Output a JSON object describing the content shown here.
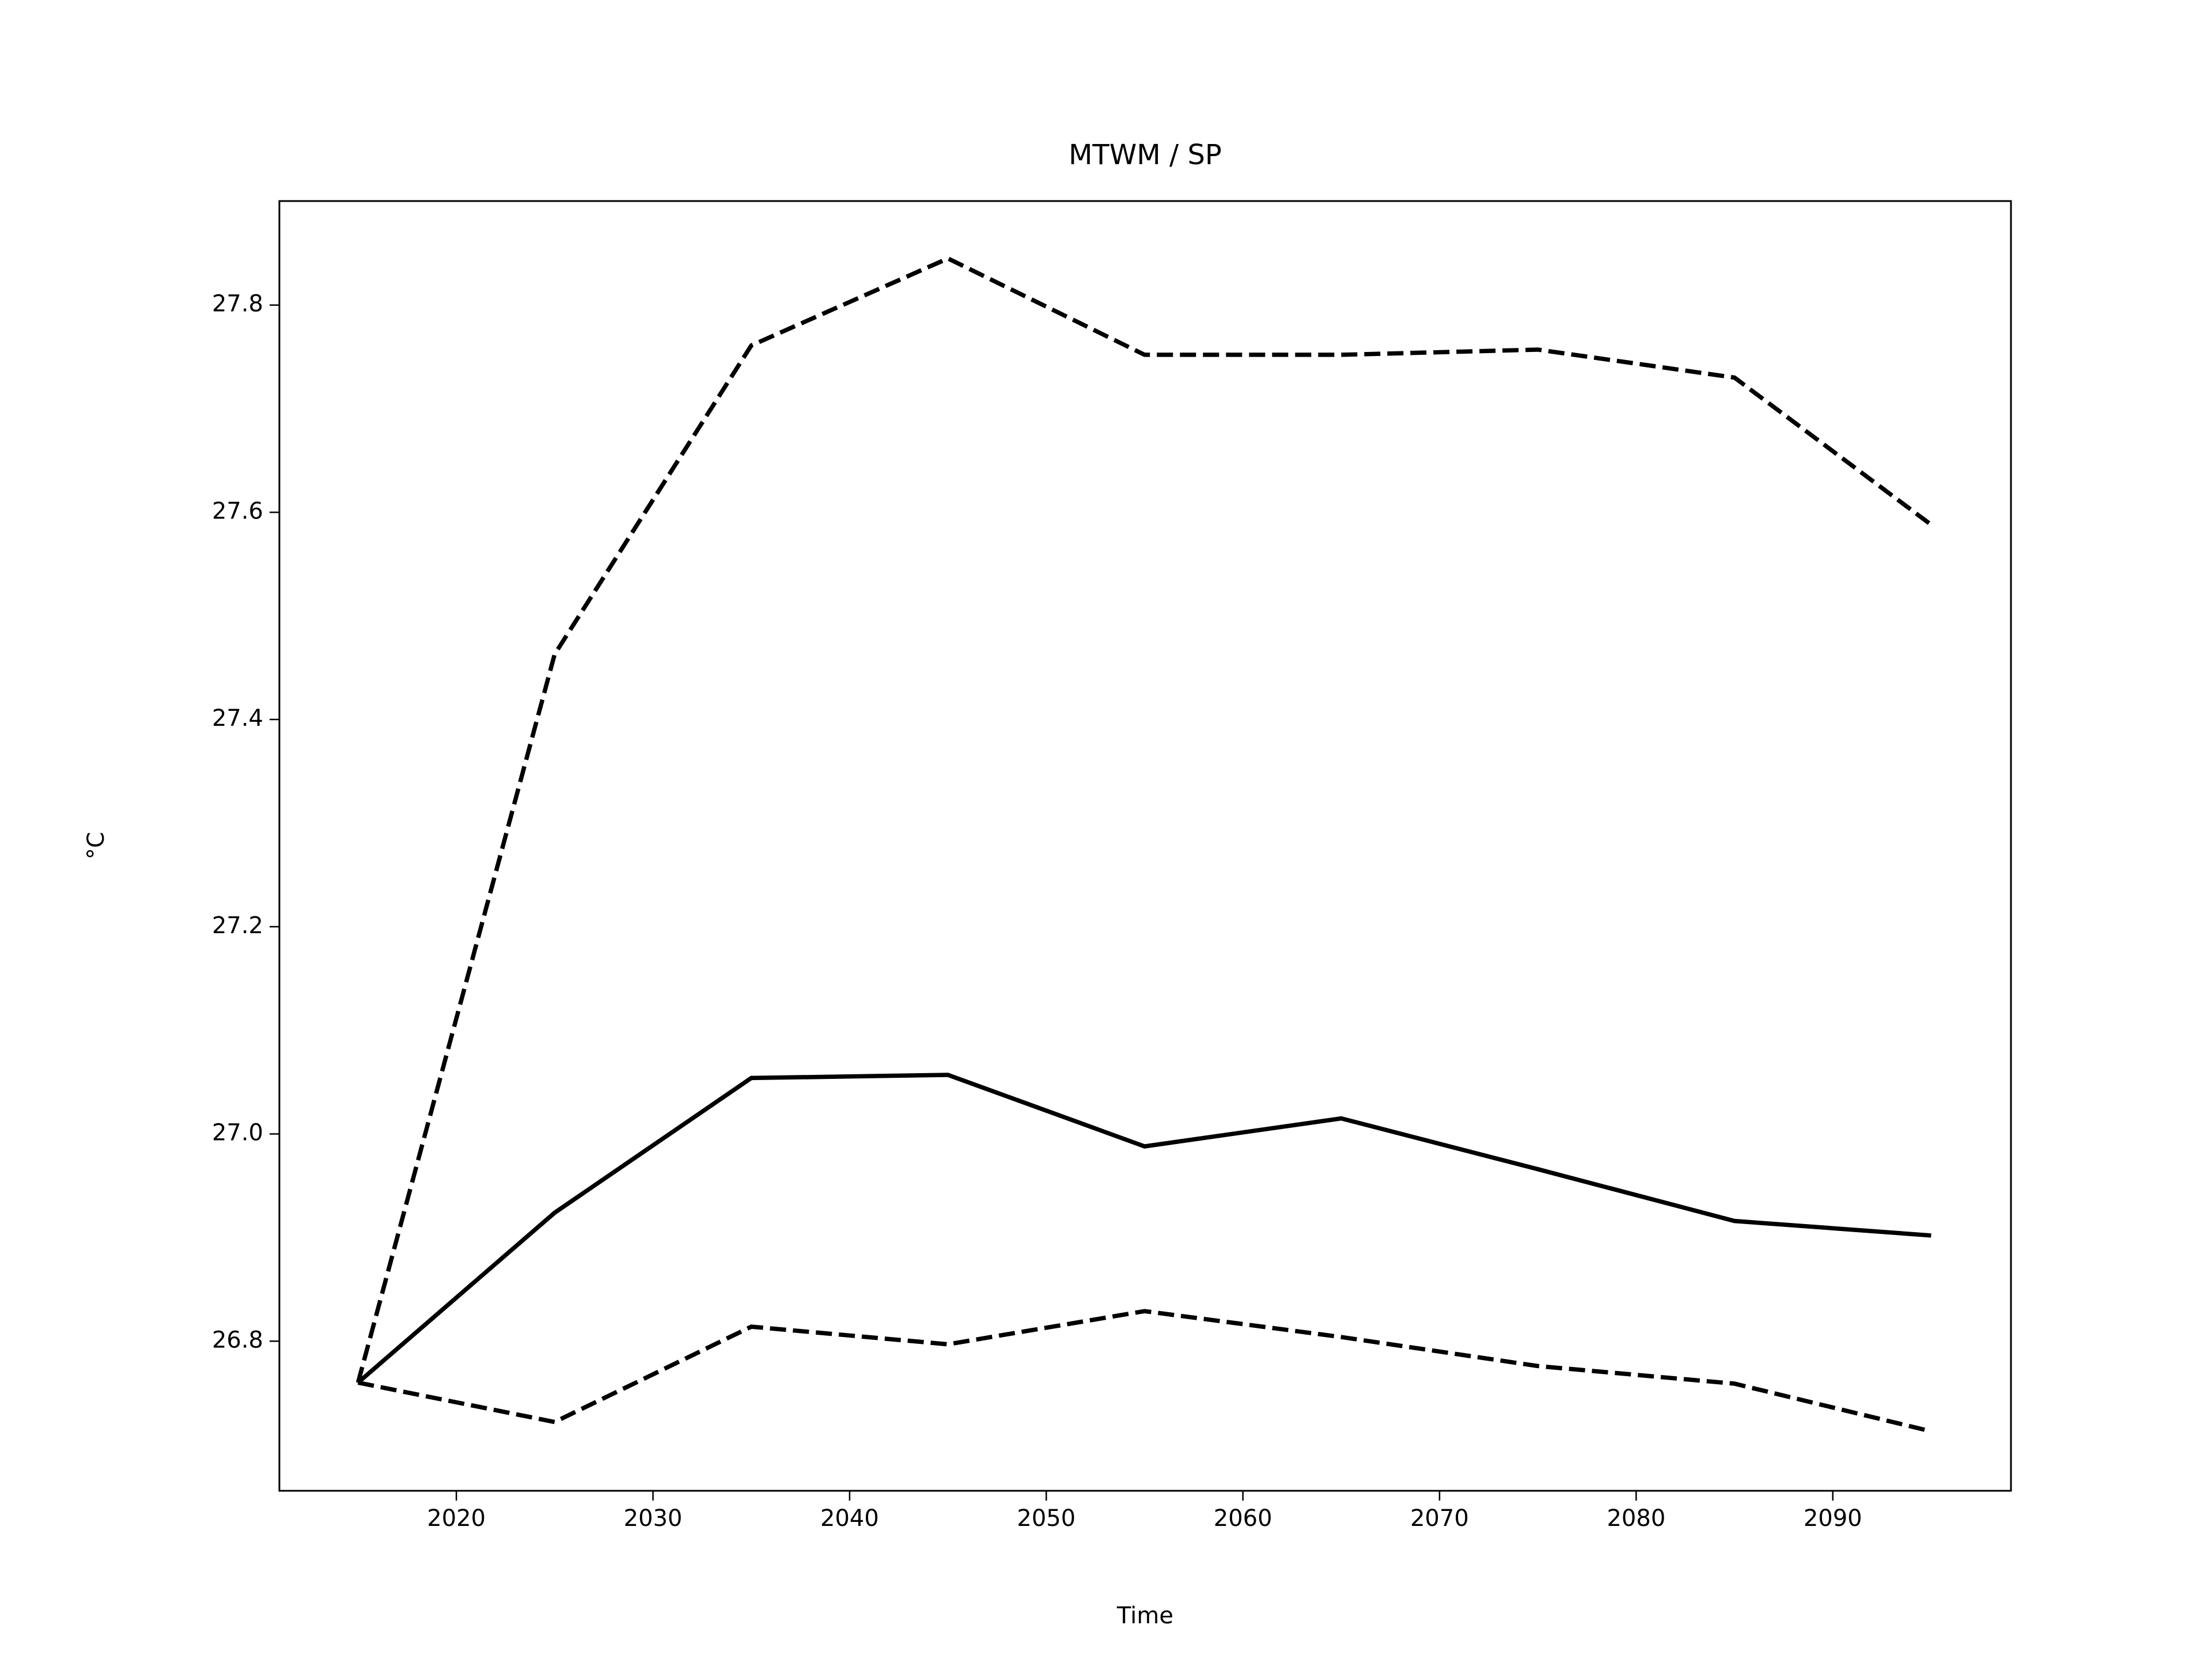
{
  "chart_data": {
    "type": "line",
    "title": "MTWM / SP",
    "xlabel": "Time",
    "ylabel": "°C",
    "x": [
      2015,
      2025,
      2035,
      2045,
      2055,
      2065,
      2075,
      2085,
      2095
    ],
    "series": [
      {
        "color": "#000000",
        "linestyle": "solid",
        "values": [
          26.76,
          26.924,
          27.054,
          27.057,
          26.988,
          27.015,
          26.966,
          26.916,
          26.902
        ]
      },
      {
        "color": "#000000",
        "linestyle": "dashed",
        "values": [
          26.76,
          27.463,
          27.761,
          27.845,
          27.752,
          27.752,
          27.757,
          27.73,
          27.588
        ]
      },
      {
        "color": "#000000",
        "linestyle": "dashed",
        "values": [
          26.76,
          26.722,
          26.814,
          26.797,
          26.829,
          26.804,
          26.776,
          26.759,
          26.713
        ]
      }
    ],
    "xlim": [
      2011,
      2099.06
    ],
    "ylim": [
      26.6556,
      27.9004
    ],
    "xticks": [
      2020,
      2030,
      2040,
      2050,
      2060,
      2070,
      2080,
      2090
    ],
    "yticks": [
      26.8,
      {
        "value": 27,
        "label": "27.0"
      },
      27.2,
      27.4,
      27.6,
      27.8
    ],
    "grid": false
  }
}
